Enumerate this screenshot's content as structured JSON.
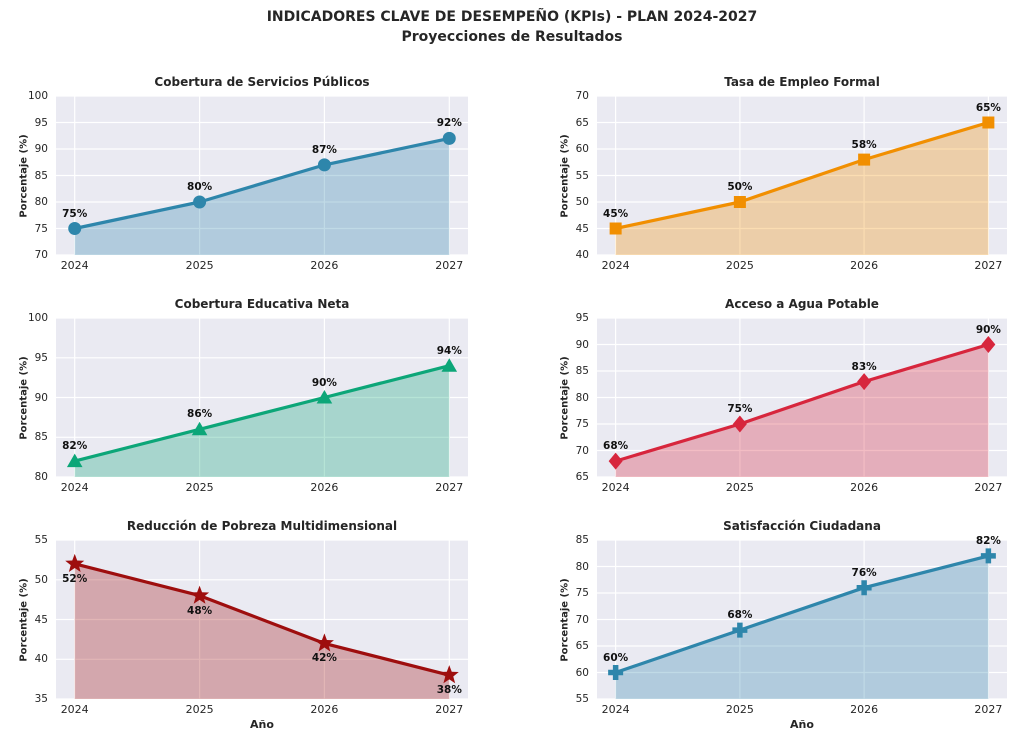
{
  "figure": {
    "title_line1": "INDICADORES CLAVE DE DESEMPEÑO (KPIs) - PLAN 2024-2027",
    "title_line2": "Proyecciones de Resultados"
  },
  "theme": {
    "plot_background": "#EAEAF2",
    "grid_color": "#FFFFFF",
    "text_color": "#262626",
    "annotation_color": "#111111",
    "area_fill_opacity": 0.3
  },
  "chart_data": [
    {
      "type": "line",
      "title": "Cobertura de Servicios Públicos",
      "categories": [
        "2024",
        "2025",
        "2026",
        "2027"
      ],
      "values": [
        75,
        80,
        87,
        92
      ],
      "labels": [
        "75%",
        "80%",
        "87%",
        "92%"
      ],
      "ylabel": "Porcentaje (%)",
      "xlabel": "",
      "ylim": [
        70,
        100
      ],
      "yticks": [
        70,
        75,
        80,
        85,
        90,
        95,
        100
      ],
      "color": "#2E86AB",
      "marker": "circle",
      "label_position": "above",
      "grid": true,
      "legend": "none"
    },
    {
      "type": "line",
      "title": "Tasa de Empleo Formal",
      "categories": [
        "2024",
        "2025",
        "2026",
        "2027"
      ],
      "values": [
        45,
        50,
        58,
        65
      ],
      "labels": [
        "45%",
        "50%",
        "58%",
        "65%"
      ],
      "ylabel": "Porcentaje (%)",
      "xlabel": "",
      "ylim": [
        40,
        70
      ],
      "yticks": [
        40,
        45,
        50,
        55,
        60,
        65,
        70
      ],
      "color": "#F18F01",
      "marker": "square",
      "label_position": "above",
      "grid": true,
      "legend": "none"
    },
    {
      "type": "line",
      "title": "Cobertura Educativa Neta",
      "categories": [
        "2024",
        "2025",
        "2026",
        "2027"
      ],
      "values": [
        82,
        86,
        90,
        94
      ],
      "labels": [
        "82%",
        "86%",
        "90%",
        "94%"
      ],
      "ylabel": "Porcentaje (%)",
      "xlabel": "",
      "ylim": [
        80,
        100
      ],
      "yticks": [
        80,
        85,
        90,
        95,
        100
      ],
      "color": "#0CA678",
      "marker": "triangle",
      "label_position": "above",
      "grid": true,
      "legend": "none"
    },
    {
      "type": "line",
      "title": "Acceso a Agua Potable",
      "categories": [
        "2024",
        "2025",
        "2026",
        "2027"
      ],
      "values": [
        68,
        75,
        83,
        90
      ],
      "labels": [
        "68%",
        "75%",
        "83%",
        "90%"
      ],
      "ylabel": "Porcentaje (%)",
      "xlabel": "",
      "ylim": [
        65,
        95
      ],
      "yticks": [
        65,
        70,
        75,
        80,
        85,
        90,
        95
      ],
      "color": "#D7263D",
      "marker": "diamond",
      "label_position": "above",
      "grid": true,
      "legend": "none"
    },
    {
      "type": "line",
      "title": "Reducción de Pobreza Multidimensional",
      "categories": [
        "2024",
        "2025",
        "2026",
        "2027"
      ],
      "values": [
        52,
        48,
        42,
        38
      ],
      "labels": [
        "52%",
        "48%",
        "42%",
        "38%"
      ],
      "ylabel": "Porcentaje (%)",
      "xlabel": "Año",
      "ylim": [
        35,
        55
      ],
      "yticks": [
        35,
        40,
        45,
        50,
        55
      ],
      "color": "#9E0E0E",
      "marker": "star",
      "label_position": "below",
      "grid": true,
      "legend": "none"
    },
    {
      "type": "line",
      "title": "Satisfacción Ciudadana",
      "categories": [
        "2024",
        "2025",
        "2026",
        "2027"
      ],
      "values": [
        60,
        68,
        76,
        82
      ],
      "labels": [
        "60%",
        "68%",
        "76%",
        "82%"
      ],
      "ylabel": "Porcentaje (%)",
      "xlabel": "Año",
      "ylim": [
        55,
        85
      ],
      "yticks": [
        55,
        60,
        65,
        70,
        75,
        80,
        85
      ],
      "color": "#2E86AB",
      "marker": "plus",
      "label_position": "above",
      "grid": true,
      "legend": "none"
    }
  ]
}
